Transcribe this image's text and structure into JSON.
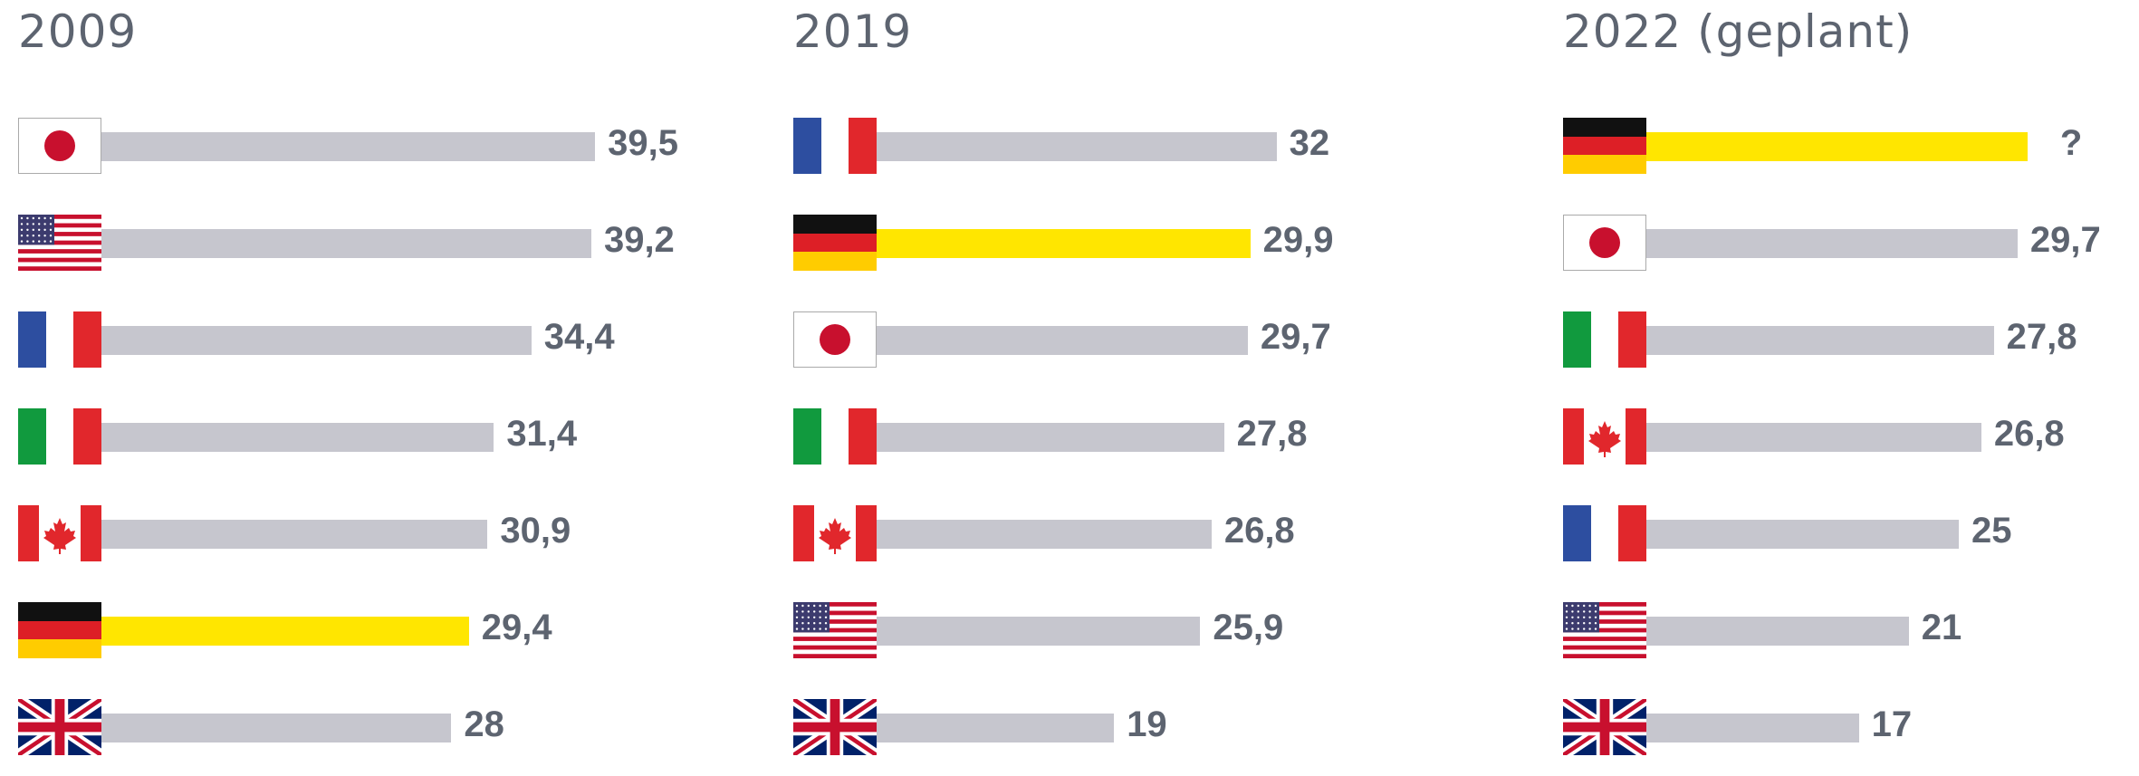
{
  "colors": {
    "bar_default": "#c6c6ce",
    "bar_highlight": "#ffe600",
    "text": "#5d6470"
  },
  "chart_data": [
    {
      "type": "bar",
      "orientation": "horizontal",
      "title": "2009",
      "categories": [
        "japan-flag",
        "usa-flag",
        "france-flag",
        "italy-flag",
        "canada-flag",
        "germany-flag",
        "uk-flag"
      ],
      "values": [
        39.5,
        39.2,
        34.4,
        31.4,
        30.9,
        29.4,
        28
      ],
      "labels": [
        "39,5",
        "39,2",
        "34,4",
        "31,4",
        "30,9",
        "29,4",
        "28"
      ],
      "highlight": [
        false,
        false,
        false,
        false,
        false,
        true,
        false
      ],
      "grid": false
    },
    {
      "type": "bar",
      "orientation": "horizontal",
      "title": "2019",
      "categories": [
        "france-flag",
        "germany-flag",
        "japan-flag",
        "italy-flag",
        "canada-flag",
        "usa-flag",
        "uk-flag"
      ],
      "values": [
        32,
        29.9,
        29.7,
        27.8,
        26.8,
        25.9,
        19
      ],
      "labels": [
        "32",
        "29,9",
        "29,7",
        "27,8",
        "26,8",
        "25,9",
        "19"
      ],
      "highlight": [
        false,
        true,
        false,
        false,
        false,
        false,
        false
      ],
      "grid": false
    },
    {
      "type": "bar",
      "orientation": "horizontal",
      "title": "2022 (geplant)",
      "categories": [
        "germany-flag",
        "japan-flag",
        "italy-flag",
        "canada-flag",
        "france-flag",
        "usa-flag",
        "uk-flag"
      ],
      "values": [
        30.5,
        29.7,
        27.8,
        26.8,
        25,
        21,
        17
      ],
      "labels": [
        "?",
        "29,7",
        "27,8",
        "26,8",
        "25",
        "21",
        "17"
      ],
      "highlight": [
        true,
        false,
        false,
        false,
        false,
        false,
        false
      ],
      "grid": false
    }
  ]
}
